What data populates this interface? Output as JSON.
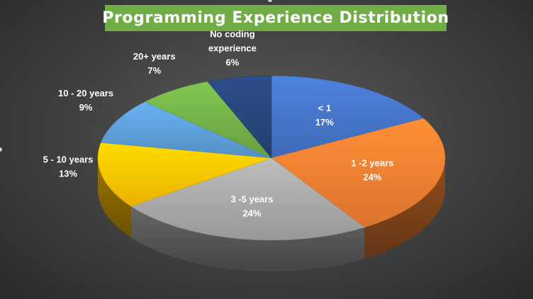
{
  "chart_data": {
    "type": "pie",
    "title": "Programming Experience Distribution",
    "slices": [
      {
        "line1": "< 1",
        "line2": "17%",
        "value": 17,
        "color": "#4472c4"
      },
      {
        "line1": "1 -2 years",
        "line2": "24%",
        "value": 24,
        "color": "#ed7d31"
      },
      {
        "line1": "3 -5 years",
        "line2": "24%",
        "value": 24,
        "color": "#a5a5a5"
      },
      {
        "line1": "5 - 10 years",
        "line2": "13%",
        "value": 13,
        "color": "#ffc000"
      },
      {
        "line1": "10 - 20 years",
        "line2": "9%",
        "value": 9,
        "color": "#5b9bd5"
      },
      {
        "line1": "20+ years",
        "line2": "7%",
        "value": 7,
        "color": "#70ad47"
      },
      {
        "line1": "No coding",
        "line1b": "experience",
        "line2": "6%",
        "value": 6,
        "color": "#264478"
      }
    ],
    "legend": "none",
    "style": "3d"
  }
}
